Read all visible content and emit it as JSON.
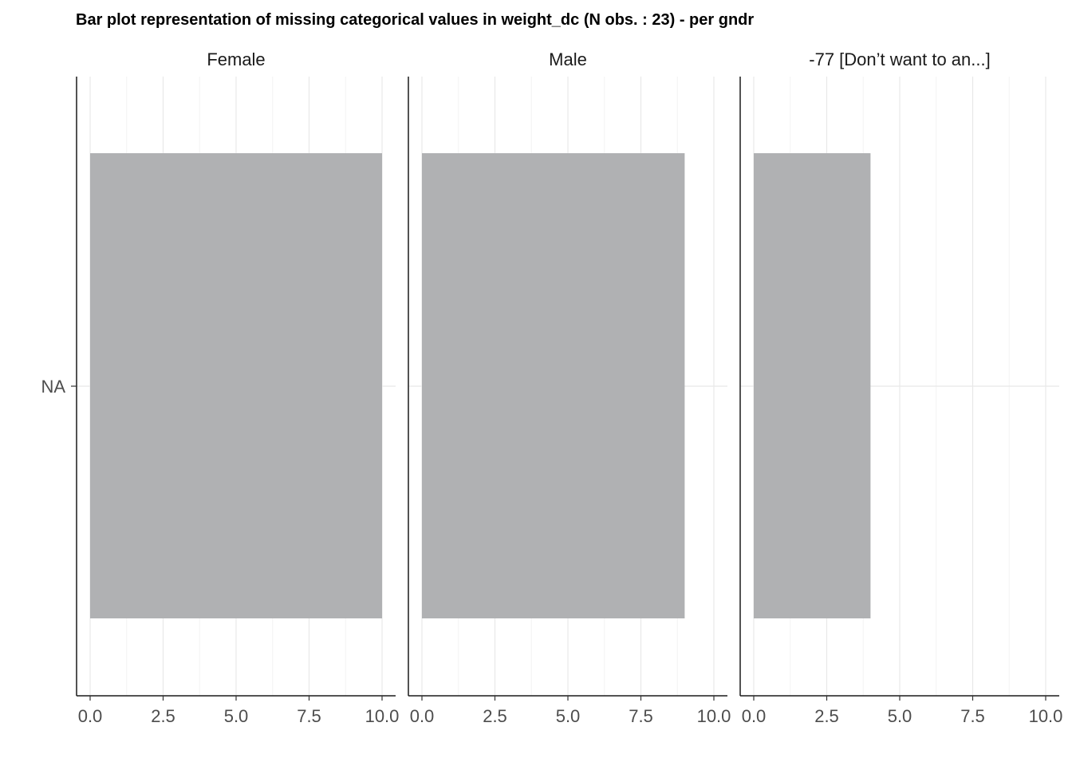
{
  "chart_data": {
    "type": "bar",
    "orientation": "horizontal",
    "title": "Bar plot representation of missing categorical values in weight_dc (N obs. : 23) - per gndr",
    "facet_variable": "gndr",
    "categories": [
      "NA"
    ],
    "facets": [
      {
        "label": "Female",
        "values": [
          10
        ]
      },
      {
        "label": "Male",
        "values": [
          9
        ]
      },
      {
        "label": "-77 [Don’t want to an...]",
        "values": [
          4
        ]
      }
    ],
    "xlim": [
      0,
      10
    ],
    "xticks": [
      "0.0",
      "2.5",
      "5.0",
      "7.5",
      "10.0"
    ],
    "xlabel": "",
    "ylabel": "",
    "grid": true,
    "bar_color": "#b0b1b3"
  }
}
